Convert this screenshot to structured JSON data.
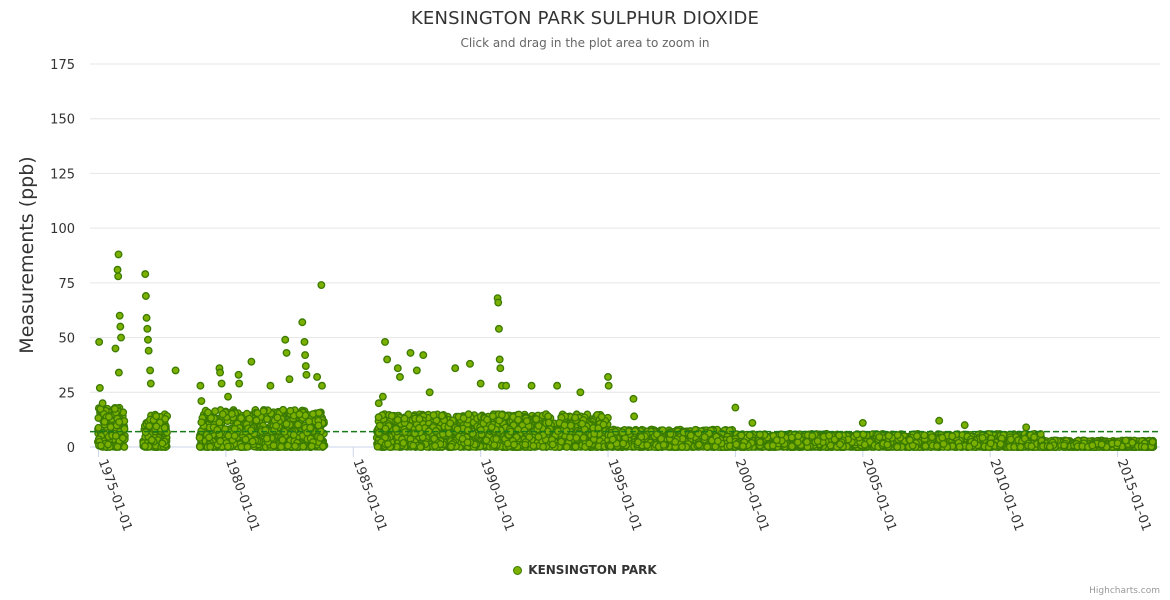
{
  "header": {
    "title": "KENSINGTON PARK SULPHUR DIOXIDE",
    "subtitle": "Click and drag in the plot area to zoom in"
  },
  "legend": {
    "label": "KENSINGTON PARK"
  },
  "credits": "Highcharts.com",
  "colors": {
    "point_fill": "#7cb000",
    "point_stroke": "#3a7a00",
    "reference_line": "#1a7a1a",
    "grid": "#e6e6e6"
  },
  "chart_data": {
    "type": "scatter",
    "title": "KENSINGTON PARK SULPHUR DIOXIDE",
    "subtitle": "Click and drag in the plot area to zoom in",
    "xlabel": "",
    "ylabel": "Measurements (ppb)",
    "ylim": [
      0,
      175
    ],
    "yticks": [
      0,
      25,
      50,
      75,
      100,
      125,
      150,
      175
    ],
    "xlim": [
      "1974-09-01",
      "2016-09-01"
    ],
    "xticks": [
      "1975-01-01",
      "1980-01-01",
      "1985-01-01",
      "1990-01-01",
      "1995-01-01",
      "2000-01-01",
      "2005-01-01",
      "2010-01-01",
      "2015-01-01"
    ],
    "reference_line": {
      "y": 7,
      "style": "dashed"
    },
    "legend": [
      "KENSINGTON PARK"
    ],
    "series": [
      {
        "name": "KENSINGTON PARK",
        "notable_points": [
          {
            "x": "1975-01-10",
            "y": 48
          },
          {
            "x": "1975-01-20",
            "y": 27
          },
          {
            "x": "1975-03-01",
            "y": 20
          },
          {
            "x": "1975-09-01",
            "y": 45
          },
          {
            "x": "1975-10-15",
            "y": 88
          },
          {
            "x": "1975-10-01",
            "y": 81
          },
          {
            "x": "1975-10-10",
            "y": 78
          },
          {
            "x": "1975-11-01",
            "y": 60
          },
          {
            "x": "1975-11-10",
            "y": 55
          },
          {
            "x": "1975-11-20",
            "y": 50
          },
          {
            "x": "1975-10-20",
            "y": 34
          },
          {
            "x": "1976-11-01",
            "y": 79
          },
          {
            "x": "1976-11-10",
            "y": 69
          },
          {
            "x": "1976-11-20",
            "y": 59
          },
          {
            "x": "1976-12-01",
            "y": 54
          },
          {
            "x": "1976-12-10",
            "y": 49
          },
          {
            "x": "1976-12-20",
            "y": 44
          },
          {
            "x": "1977-01-10",
            "y": 35
          },
          {
            "x": "1977-01-20",
            "y": 29
          },
          {
            "x": "1978-01-10",
            "y": 35
          },
          {
            "x": "1979-01-01",
            "y": 28
          },
          {
            "x": "1979-01-15",
            "y": 21
          },
          {
            "x": "1979-10-01",
            "y": 36
          },
          {
            "x": "1979-10-10",
            "y": 34
          },
          {
            "x": "1979-11-01",
            "y": 29
          },
          {
            "x": "1980-02-01",
            "y": 23
          },
          {
            "x": "1980-07-01",
            "y": 33
          },
          {
            "x": "1980-07-10",
            "y": 29
          },
          {
            "x": "1981-01-01",
            "y": 39
          },
          {
            "x": "1981-10-01",
            "y": 28
          },
          {
            "x": "1982-05-01",
            "y": 49
          },
          {
            "x": "1982-05-20",
            "y": 43
          },
          {
            "x": "1982-07-01",
            "y": 31
          },
          {
            "x": "1983-01-01",
            "y": 57
          },
          {
            "x": "1983-02-01",
            "y": 48
          },
          {
            "x": "1983-02-10",
            "y": 42
          },
          {
            "x": "1983-02-20",
            "y": 37
          },
          {
            "x": "1983-03-01",
            "y": 33
          },
          {
            "x": "1983-08-01",
            "y": 32
          },
          {
            "x": "1983-10-01",
            "y": 74
          },
          {
            "x": "1983-10-10",
            "y": 28
          },
          {
            "x": "1986-01-01",
            "y": 20
          },
          {
            "x": "1986-03-01",
            "y": 23
          },
          {
            "x": "1986-04-01",
            "y": 48
          },
          {
            "x": "1986-05-01",
            "y": 40
          },
          {
            "x": "1986-10-01",
            "y": 36
          },
          {
            "x": "1986-11-01",
            "y": 32
          },
          {
            "x": "1987-04-01",
            "y": 43
          },
          {
            "x": "1987-07-01",
            "y": 35
          },
          {
            "x": "1987-10-01",
            "y": 42
          },
          {
            "x": "1988-01-01",
            "y": 25
          },
          {
            "x": "1989-01-01",
            "y": 36
          },
          {
            "x": "1989-08-01",
            "y": 38
          },
          {
            "x": "1990-01-01",
            "y": 29
          },
          {
            "x": "1990-09-01",
            "y": 68
          },
          {
            "x": "1990-09-10",
            "y": 66
          },
          {
            "x": "1990-09-20",
            "y": 54
          },
          {
            "x": "1990-10-01",
            "y": 40
          },
          {
            "x": "1990-10-10",
            "y": 36
          },
          {
            "x": "1990-11-01",
            "y": 28
          },
          {
            "x": "1991-01-01",
            "y": 28
          },
          {
            "x": "1992-01-01",
            "y": 28
          },
          {
            "x": "1993-01-01",
            "y": 28
          },
          {
            "x": "1993-12-01",
            "y": 25
          },
          {
            "x": "1995-01-01",
            "y": 32
          },
          {
            "x": "1995-01-10",
            "y": 28
          },
          {
            "x": "1996-01-01",
            "y": 22
          },
          {
            "x": "1996-01-10",
            "y": 14
          },
          {
            "x": "2000-01-01",
            "y": 18
          },
          {
            "x": "2000-09-01",
            "y": 11
          },
          {
            "x": "2005-01-01",
            "y": 11
          },
          {
            "x": "2008-01-01",
            "y": 12
          },
          {
            "x": "2009-01-01",
            "y": 10
          },
          {
            "x": "2011-06-01",
            "y": 9
          }
        ],
        "active_periods": [
          {
            "start": "1974-12-20",
            "end": "1976-01-15",
            "typical_max": 18
          },
          {
            "start": "1976-10-01",
            "end": "1977-09-15",
            "typical_max": 15
          },
          {
            "start": "1978-12-20",
            "end": "1983-11-15",
            "typical_max": 17
          },
          {
            "start": "1985-12-01",
            "end": "1995-01-01",
            "typical_max": 15
          },
          {
            "start": "1995-01-01",
            "end": "2000-01-01",
            "typical_max": 8
          },
          {
            "start": "2000-01-01",
            "end": "2012-01-01",
            "typical_max": 6
          },
          {
            "start": "2012-01-01",
            "end": "2016-06-01",
            "typical_max": 3
          }
        ]
      }
    ]
  }
}
